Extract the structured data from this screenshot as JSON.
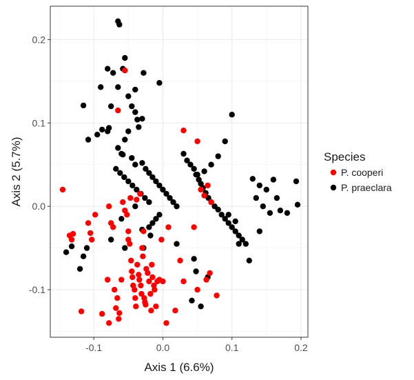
{
  "chart_data": {
    "type": "scatter",
    "xlabel": "Axis 1 (6.6%)",
    "ylabel": "Axis 2 (5.7%)",
    "xlim": [
      -0.163,
      0.21
    ],
    "ylim": [
      -0.157,
      0.24
    ],
    "x_ticks": [
      -0.1,
      0.0,
      0.1,
      0.2
    ],
    "x_tick_labels": [
      "-0.1",
      "0.0",
      "0.1",
      "0.2"
    ],
    "y_ticks": [
      -0.1,
      0.0,
      0.1,
      0.2
    ],
    "y_tick_labels": [
      "-0.1",
      "0.0",
      "0.1",
      "0.2"
    ],
    "grid": true,
    "legend": {
      "title": "Species",
      "position": "right",
      "entries": [
        {
          "label": "P. cooperi",
          "color": "#ff0000"
        },
        {
          "label": "P. praeclara",
          "color": "#000000"
        }
      ]
    },
    "series": [
      {
        "name": "P. cooperi",
        "color": "#ff0000",
        "points": [
          [
            -0.145,
            0.02
          ],
          [
            -0.135,
            -0.035
          ],
          [
            -0.132,
            -0.04
          ],
          [
            -0.13,
            -0.033
          ],
          [
            -0.118,
            -0.126
          ],
          [
            -0.108,
            -0.02
          ],
          [
            -0.105,
            -0.032
          ],
          [
            -0.103,
            -0.04
          ],
          [
            -0.098,
            -0.01
          ],
          [
            -0.088,
            -0.129
          ],
          [
            -0.08,
            -0.088
          ],
          [
            -0.078,
            -0.14
          ],
          [
            -0.078,
            0.0
          ],
          [
            -0.075,
            -0.02
          ],
          [
            -0.072,
            -0.025
          ],
          [
            -0.07,
            -0.1
          ],
          [
            -0.068,
            -0.122
          ],
          [
            -0.066,
            -0.11
          ],
          [
            -0.064,
            -0.135
          ],
          [
            -0.063,
            -0.128
          ],
          [
            -0.06,
            -0.088
          ],
          [
            -0.058,
            0.005
          ],
          [
            -0.055,
            -0.005
          ],
          [
            -0.052,
            -0.01
          ],
          [
            -0.05,
            -0.03
          ],
          [
            -0.05,
            -0.04
          ],
          [
            -0.048,
            -0.045
          ],
          [
            -0.047,
            0.01
          ],
          [
            -0.046,
            -0.065
          ],
          [
            -0.045,
            -0.078
          ],
          [
            -0.044,
            -0.085
          ],
          [
            -0.043,
            -0.095
          ],
          [
            -0.041,
            -0.1
          ],
          [
            -0.04,
            -0.11
          ],
          [
            -0.039,
            -0.12
          ],
          [
            -0.038,
            0.008
          ],
          [
            -0.037,
            -0.07
          ],
          [
            -0.035,
            -0.082
          ],
          [
            -0.034,
            -0.088
          ],
          [
            -0.033,
            0.015
          ],
          [
            -0.032,
            -0.095
          ],
          [
            -0.031,
            -0.105
          ],
          [
            -0.03,
            -0.05
          ],
          [
            -0.029,
            -0.06
          ],
          [
            -0.028,
            -0.03
          ],
          [
            -0.027,
            -0.11
          ],
          [
            -0.026,
            -0.115
          ],
          [
            -0.025,
            -0.118
          ],
          [
            -0.024,
            -0.075
          ],
          [
            -0.022,
            -0.08
          ],
          [
            -0.02,
            -0.09
          ],
          [
            -0.018,
            -0.105
          ],
          [
            -0.017,
            -0.125
          ],
          [
            -0.016,
            -0.07
          ],
          [
            -0.015,
            -0.085
          ],
          [
            -0.013,
            -0.095
          ],
          [
            -0.012,
            -0.1
          ],
          [
            -0.01,
            -0.12
          ],
          [
            -0.008,
            -0.09
          ],
          [
            -0.005,
            -0.088
          ],
          [
            -0.002,
            -0.04
          ],
          [
            0.0,
            -0.09
          ],
          [
            0.005,
            -0.14
          ],
          [
            0.008,
            -0.025
          ],
          [
            0.018,
            -0.125
          ],
          [
            0.025,
            -0.065
          ],
          [
            0.03,
            -0.09
          ],
          [
            0.03,
            0.091
          ],
          [
            0.045,
            -0.025
          ],
          [
            0.05,
            0.078
          ],
          [
            0.05,
            -0.1
          ],
          [
            0.055,
            0.02
          ],
          [
            0.06,
            0.013
          ],
          [
            0.063,
            -0.088
          ],
          [
            0.065,
            0.025
          ],
          [
            0.068,
            -0.08
          ],
          [
            0.07,
            0.005
          ],
          [
            0.078,
            -0.107
          ],
          [
            -0.055,
            0.163
          ],
          [
            -0.065,
            0.115
          ]
        ]
      },
      {
        "name": "P. praeclara",
        "color": "#000000",
        "points": [
          [
            -0.065,
            0.222
          ],
          [
            -0.063,
            0.218
          ],
          [
            -0.055,
            0.178
          ],
          [
            -0.058,
            0.165
          ],
          [
            -0.08,
            0.165
          ],
          [
            -0.072,
            0.16
          ],
          [
            -0.028,
            0.16
          ],
          [
            -0.09,
            0.143
          ],
          [
            -0.065,
            0.143
          ],
          [
            -0.04,
            0.14
          ],
          [
            -0.05,
            0.132
          ],
          [
            -0.005,
            0.148
          ],
          [
            -0.075,
            0.12
          ],
          [
            -0.045,
            0.12
          ],
          [
            -0.04,
            0.113
          ],
          [
            -0.115,
            0.121
          ],
          [
            -0.037,
            0.104
          ],
          [
            -0.03,
            0.105
          ],
          [
            -0.088,
            0.092
          ],
          [
            -0.08,
            0.09
          ],
          [
            -0.078,
            0.094
          ],
          [
            -0.05,
            0.09
          ],
          [
            -0.035,
            0.095
          ],
          [
            -0.055,
            0.08
          ],
          [
            -0.108,
            0.08
          ],
          [
            -0.095,
            0.086
          ],
          [
            -0.065,
            0.07
          ],
          [
            -0.06,
            0.063
          ],
          [
            -0.058,
            0.062
          ],
          [
            -0.045,
            0.058
          ],
          [
            -0.04,
            0.05
          ],
          [
            -0.03,
            0.052
          ],
          [
            -0.025,
            0.045
          ],
          [
            -0.02,
            0.04
          ],
          [
            -0.015,
            0.035
          ],
          [
            -0.01,
            0.03
          ],
          [
            -0.005,
            0.025
          ],
          [
            0.0,
            0.02
          ],
          [
            0.005,
            0.015
          ],
          [
            0.01,
            0.01
          ],
          [
            0.015,
            0.005
          ],
          [
            0.02,
            0.0
          ],
          [
            -0.068,
            0.045
          ],
          [
            -0.062,
            0.04
          ],
          [
            -0.056,
            0.035
          ],
          [
            -0.05,
            0.03
          ],
          [
            -0.044,
            0.025
          ],
          [
            -0.038,
            0.02
          ],
          [
            -0.032,
            0.015
          ],
          [
            -0.026,
            0.01
          ],
          [
            -0.02,
            0.005
          ],
          [
            0.03,
            0.063
          ],
          [
            0.035,
            0.055
          ],
          [
            0.04,
            0.05
          ],
          [
            0.045,
            0.045
          ],
          [
            0.048,
            0.038
          ],
          [
            0.052,
            0.032
          ],
          [
            0.055,
            0.027
          ],
          [
            0.058,
            0.022
          ],
          [
            0.062,
            0.016
          ],
          [
            0.066,
            0.01
          ],
          [
            0.07,
            0.005
          ],
          [
            0.075,
            0.0
          ],
          [
            0.08,
            -0.004
          ],
          [
            0.085,
            -0.01
          ],
          [
            0.09,
            -0.015
          ],
          [
            0.095,
            -0.02
          ],
          [
            0.1,
            -0.025
          ],
          [
            0.105,
            -0.03
          ],
          [
            0.11,
            -0.035
          ],
          [
            0.115,
            -0.04
          ],
          [
            0.12,
            -0.045
          ],
          [
            0.13,
            0.033
          ],
          [
            0.14,
            0.025
          ],
          [
            0.15,
            0.02
          ],
          [
            0.16,
            0.032
          ],
          [
            0.17,
            -0.005
          ],
          [
            0.18,
            -0.008
          ],
          [
            0.193,
            0.03
          ],
          [
            0.195,
            0.002
          ],
          [
            0.1,
            0.11
          ],
          [
            0.09,
            0.078
          ],
          [
            0.08,
            0.06
          ],
          [
            0.07,
            0.05
          ],
          [
            0.06,
            0.042
          ],
          [
            0.05,
            0.038
          ],
          [
            -0.14,
            -0.055
          ],
          [
            -0.132,
            -0.048
          ],
          [
            -0.12,
            -0.075
          ],
          [
            -0.115,
            -0.06
          ],
          [
            -0.11,
            -0.05
          ],
          [
            -0.075,
            -0.04
          ],
          [
            -0.06,
            -0.015
          ],
          [
            -0.055,
            -0.05
          ],
          [
            -0.04,
            0.0
          ],
          [
            -0.03,
            -0.028
          ],
          [
            -0.028,
            -0.05
          ],
          [
            -0.02,
            -0.025
          ],
          [
            -0.018,
            -0.035
          ],
          [
            -0.015,
            -0.02
          ],
          [
            -0.01,
            -0.015
          ],
          [
            -0.005,
            -0.01
          ],
          [
            0.02,
            -0.045
          ],
          [
            0.045,
            -0.063
          ],
          [
            0.048,
            -0.078
          ],
          [
            0.065,
            -0.085
          ],
          [
            0.095,
            -0.01
          ],
          [
            0.105,
            -0.018
          ],
          [
            0.11,
            -0.045
          ],
          [
            0.125,
            -0.065
          ],
          [
            0.14,
            -0.03
          ],
          [
            0.135,
            0.01
          ],
          [
            0.145,
            0.0
          ],
          [
            0.155,
            -0.008
          ],
          [
            0.165,
            0.01
          ],
          [
            0.042,
            -0.113
          ],
          [
            0.055,
            -0.12
          ]
        ]
      }
    ]
  }
}
